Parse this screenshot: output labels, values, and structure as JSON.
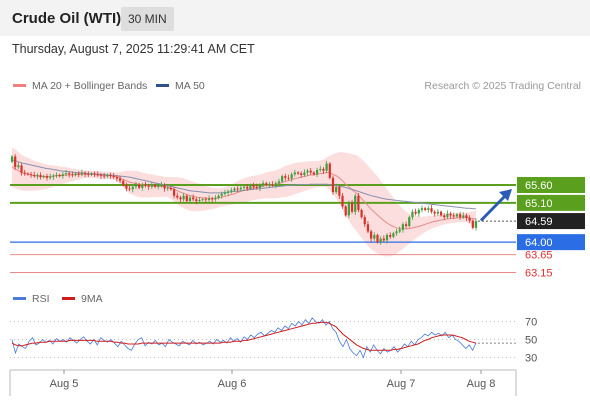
{
  "header": {
    "title": "Crude Oil (WTI)",
    "interval": "30 MIN",
    "datetime": "Thursday, August 7, 2025 11:29:41 AM CET"
  },
  "credit": "Research © 2025 Trading Central",
  "colors": {
    "bollinger": "#f08080",
    "ma50": "#2f4f8f",
    "resistance": "#5aa01e",
    "support_blue": "#2b6de5",
    "support_red": "#e03030",
    "rsi": "#4a7bd6",
    "rsi_ma": "#d11c1c"
  },
  "chart_data": [
    {
      "type": "candlestick",
      "legend": [
        "MA 20 + Bollinger Bands",
        "MA 50"
      ],
      "ylim": [
        62.9,
        66.4
      ],
      "x_ticks": [
        "Aug 5",
        "Aug 6",
        "Aug 7",
        "Aug 8"
      ],
      "current_price": 64.59,
      "key_levels": [
        {
          "value": 65.6,
          "label": "65.60",
          "kind": "resistance"
        },
        {
          "value": 65.1,
          "label": "65.10",
          "kind": "resistance"
        },
        {
          "value": 64.59,
          "label": "64.59",
          "kind": "current"
        },
        {
          "value": 64.0,
          "label": "64.00",
          "kind": "support"
        },
        {
          "value": 63.65,
          "label": "63.65",
          "kind": "support"
        },
        {
          "value": 63.15,
          "label": "63.15",
          "kind": "support"
        }
      ],
      "forecast_arrow": {
        "from": 64.55,
        "to": 65.6
      },
      "close": [
        66.4,
        66.1,
        66.15,
        65.95,
        65.92,
        65.9,
        65.88,
        65.85,
        65.88,
        65.82,
        65.85,
        65.8,
        65.83,
        65.86,
        65.88,
        65.85,
        65.9,
        65.93,
        65.9,
        65.88,
        65.92,
        65.9,
        65.94,
        65.91,
        65.89,
        65.92,
        65.9,
        65.88,
        65.86,
        65.84,
        65.88,
        65.85,
        65.82,
        65.78,
        65.72,
        65.6,
        65.5,
        65.48,
        65.55,
        65.62,
        65.52,
        65.6,
        65.58,
        65.55,
        65.6,
        65.55,
        65.58,
        65.6,
        65.5,
        65.52,
        65.48,
        65.3,
        65.25,
        65.2,
        65.3,
        65.15,
        65.25,
        65.2,
        65.15,
        65.18,
        65.2,
        65.18,
        65.22,
        65.2,
        65.24,
        65.3,
        65.35,
        65.38,
        65.42,
        65.45,
        65.5,
        65.48,
        65.52,
        65.55,
        65.5,
        65.6,
        65.55,
        65.52,
        65.6,
        65.65,
        65.6,
        65.62,
        65.6,
        65.65,
        65.7,
        65.85,
        65.8,
        65.78,
        65.9,
        65.95,
        65.92,
        65.88,
        65.95,
        66.0,
        65.95,
        65.9,
        66.02,
        66.05,
        66.0,
        66.2,
        65.8,
        65.4,
        65.55,
        65.3,
        65.0,
        64.75,
        65.1,
        64.85,
        65.3,
        64.9,
        64.7,
        64.5,
        64.3,
        64.1,
        64.2,
        64.0,
        64.1,
        64.05,
        64.2,
        64.15,
        64.25,
        64.3,
        64.35,
        64.5,
        64.45,
        64.7,
        64.85,
        64.8,
        64.9,
        64.95,
        64.9,
        64.95,
        64.85,
        64.8,
        64.85,
        64.75,
        64.7,
        64.8,
        64.75,
        64.72,
        64.78,
        64.7,
        64.75,
        64.68,
        64.6,
        64.4,
        64.59
      ],
      "ma20": [
        66.1,
        66.05,
        66.0,
        65.95,
        65.92,
        65.9,
        65.88,
        65.86,
        65.85,
        65.84,
        65.84,
        65.83,
        65.84,
        65.85,
        65.86,
        65.86,
        65.87,
        65.88,
        65.88,
        65.88,
        65.89,
        65.89,
        65.9,
        65.9,
        65.9,
        65.9,
        65.89,
        65.88,
        65.88,
        65.87,
        65.87,
        65.86,
        65.85,
        65.83,
        65.8,
        65.76,
        65.72,
        65.68,
        65.66,
        65.64,
        65.62,
        65.6,
        65.59,
        65.58,
        65.58,
        65.57,
        65.56,
        65.56,
        65.55,
        65.54,
        65.52,
        65.48,
        65.44,
        65.4,
        65.37,
        65.33,
        65.3,
        65.28,
        65.26,
        65.25,
        65.24,
        65.23,
        65.23,
        65.22,
        65.23,
        65.24,
        65.26,
        65.28,
        65.3,
        65.33,
        65.36,
        65.39,
        65.42,
        65.45,
        65.47,
        65.5,
        65.52,
        65.53,
        65.55,
        65.57,
        65.59,
        65.6,
        65.61,
        65.62,
        65.64,
        65.67,
        65.7,
        65.72,
        65.75,
        65.78,
        65.8,
        65.82,
        65.84,
        65.86,
        65.88,
        65.89,
        65.9,
        65.92,
        65.93,
        65.95,
        65.94,
        65.9,
        65.86,
        65.8,
        65.72,
        65.62,
        65.55,
        65.46,
        65.4,
        65.32,
        65.22,
        65.12,
        65.02,
        64.92,
        64.84,
        64.76,
        64.68,
        64.6,
        64.54,
        64.48,
        64.44,
        64.4,
        64.38,
        64.37,
        64.37,
        64.38,
        64.4,
        64.42,
        64.44,
        64.47,
        64.5,
        64.53,
        64.56,
        64.58,
        64.6,
        64.62,
        64.63,
        64.65,
        64.66,
        64.67,
        64.68,
        64.69,
        64.69,
        64.69,
        64.68,
        64.66,
        64.65
      ],
      "bb_width": [
        0.55,
        0.55,
        0.52,
        0.5,
        0.48,
        0.46,
        0.44,
        0.42,
        0.4,
        0.38,
        0.36,
        0.34,
        0.32,
        0.3,
        0.28,
        0.26,
        0.24,
        0.22,
        0.2,
        0.18,
        0.16,
        0.14,
        0.12,
        0.1,
        0.1,
        0.1,
        0.1,
        0.1,
        0.1,
        0.1,
        0.1,
        0.1,
        0.1,
        0.12,
        0.16,
        0.22,
        0.28,
        0.32,
        0.34,
        0.35,
        0.36,
        0.35,
        0.34,
        0.33,
        0.32,
        0.31,
        0.3,
        0.29,
        0.28,
        0.28,
        0.3,
        0.34,
        0.38,
        0.4,
        0.42,
        0.42,
        0.42,
        0.41,
        0.4,
        0.38,
        0.36,
        0.34,
        0.32,
        0.3,
        0.28,
        0.27,
        0.26,
        0.26,
        0.27,
        0.28,
        0.3,
        0.32,
        0.33,
        0.34,
        0.34,
        0.34,
        0.34,
        0.34,
        0.34,
        0.35,
        0.36,
        0.37,
        0.38,
        0.39,
        0.4,
        0.42,
        0.44,
        0.44,
        0.44,
        0.44,
        0.43,
        0.42,
        0.41,
        0.4,
        0.39,
        0.38,
        0.37,
        0.37,
        0.38,
        0.42,
        0.48,
        0.56,
        0.64,
        0.72,
        0.8,
        0.88,
        0.94,
        1.0,
        1.05,
        1.08,
        1.1,
        1.12,
        1.12,
        1.12,
        1.1,
        1.08,
        1.04,
        1.0,
        0.94,
        0.88,
        0.8,
        0.72,
        0.64,
        0.56,
        0.48,
        0.42,
        0.36,
        0.32,
        0.28,
        0.24,
        0.22,
        0.2,
        0.18,
        0.17,
        0.16,
        0.15,
        0.14,
        0.14,
        0.13,
        0.13,
        0.13,
        0.13,
        0.13,
        0.14,
        0.16,
        0.2,
        0.22
      ],
      "ma50": [
        66.3,
        66.28,
        66.25,
        66.22,
        66.2,
        66.18,
        66.16,
        66.14,
        66.12,
        66.1,
        66.08,
        66.06,
        66.05,
        66.03,
        66.02,
        66.0,
        65.99,
        65.98,
        65.97,
        65.96,
        65.95,
        65.94,
        65.94,
        65.93,
        65.92,
        65.92,
        65.91,
        65.9,
        65.9,
        65.89,
        65.88,
        65.88,
        65.87,
        65.86,
        65.85,
        65.84,
        65.83,
        65.82,
        65.8,
        65.78,
        65.76,
        65.74,
        65.72,
        65.7,
        65.68,
        65.66,
        65.64,
        65.62,
        65.6,
        65.58,
        65.56,
        65.54,
        65.52,
        65.5,
        65.48,
        65.46,
        65.44,
        65.43,
        65.42,
        65.41,
        65.4,
        65.39,
        65.38,
        65.38,
        65.38,
        65.38,
        65.38,
        65.39,
        65.4,
        65.41,
        65.42,
        65.43,
        65.44,
        65.45,
        65.46,
        65.47,
        65.48,
        65.49,
        65.5,
        65.51,
        65.52,
        65.53,
        65.54,
        65.55,
        65.56,
        65.57,
        65.58,
        65.59,
        65.6,
        65.6,
        65.61,
        65.61,
        65.61,
        65.61,
        65.62,
        65.62,
        65.62,
        65.62,
        65.62,
        65.62,
        65.61,
        65.6,
        65.59,
        65.57,
        65.55,
        65.53,
        65.5,
        65.48,
        65.45,
        65.42,
        65.39,
        65.36,
        65.33,
        65.3,
        65.28,
        65.26,
        65.24,
        65.22,
        65.2,
        65.19,
        65.18,
        65.17,
        65.16,
        65.15,
        65.14,
        65.13,
        65.12,
        65.11,
        65.1,
        65.09,
        65.08,
        65.07,
        65.06,
        65.05,
        65.04,
        65.03,
        65.02,
        65.01,
        65.0,
        64.99,
        64.98,
        64.97,
        64.96,
        64.95,
        64.95,
        64.94,
        64.93
      ]
    },
    {
      "type": "line",
      "legend": [
        "RSI",
        "9MA"
      ],
      "ylim": [
        20,
        80
      ],
      "y_ticks": [
        70,
        50,
        30
      ],
      "series": [
        {
          "name": "RSI",
          "values": [
            50,
            35,
            45,
            42,
            40,
            48,
            52,
            44,
            46,
            50,
            47,
            49,
            45,
            51,
            48,
            50,
            47,
            52,
            49,
            46,
            50,
            53,
            48,
            45,
            50,
            44,
            52,
            49,
            47,
            50,
            46,
            42,
            48,
            44,
            40,
            38,
            45,
            50,
            52,
            43,
            47,
            45,
            49,
            44,
            46,
            42,
            50,
            47,
            45,
            43,
            48,
            46,
            44,
            49,
            45,
            47,
            44,
            46,
            48,
            45,
            50,
            47,
            49,
            46,
            52,
            48,
            51,
            47,
            53,
            50,
            55,
            52,
            56,
            58,
            54,
            57,
            60,
            58,
            63,
            60,
            65,
            62,
            68,
            65,
            70,
            66,
            72,
            68,
            74,
            70,
            68,
            72,
            66,
            70,
            62,
            58,
            48,
            42,
            50,
            40,
            35,
            32,
            38,
            30,
            42,
            36,
            44,
            38,
            34,
            40,
            36,
            38,
            42,
            36,
            40,
            45,
            42,
            48,
            44,
            50,
            52,
            56,
            54,
            58,
            55,
            57,
            54,
            58,
            52,
            55,
            50,
            48,
            44,
            40,
            44,
            38,
            46
          ]
        },
        {
          "name": "9MA",
          "values": [
            46,
            44,
            43,
            43,
            44,
            45,
            46,
            46,
            47,
            47,
            47,
            48,
            48,
            48,
            48,
            48,
            48,
            49,
            49,
            49,
            49,
            49,
            49,
            49,
            49,
            48,
            48,
            48,
            48,
            48,
            47,
            47,
            46,
            46,
            45,
            45,
            45,
            45,
            46,
            46,
            46,
            46,
            46,
            46,
            46,
            46,
            46,
            46,
            46,
            46,
            46,
            46,
            46,
            46,
            46,
            46,
            46,
            46,
            46,
            46,
            46,
            46,
            47,
            47,
            47,
            48,
            48,
            48,
            49,
            49,
            50,
            51,
            52,
            53,
            54,
            55,
            56,
            57,
            58,
            59,
            60,
            61,
            62,
            63,
            64,
            65,
            66,
            67,
            68,
            68,
            69,
            69,
            69,
            68,
            66,
            64,
            60,
            56,
            53,
            50,
            47,
            44,
            42,
            40,
            39,
            38,
            38,
            38,
            38,
            38,
            38,
            38,
            39,
            39,
            40,
            41,
            42,
            43,
            44,
            45,
            47,
            49,
            50,
            52,
            53,
            54,
            55,
            55,
            55,
            55,
            54,
            53,
            52,
            50,
            48,
            47,
            46
          ]
        }
      ]
    }
  ]
}
